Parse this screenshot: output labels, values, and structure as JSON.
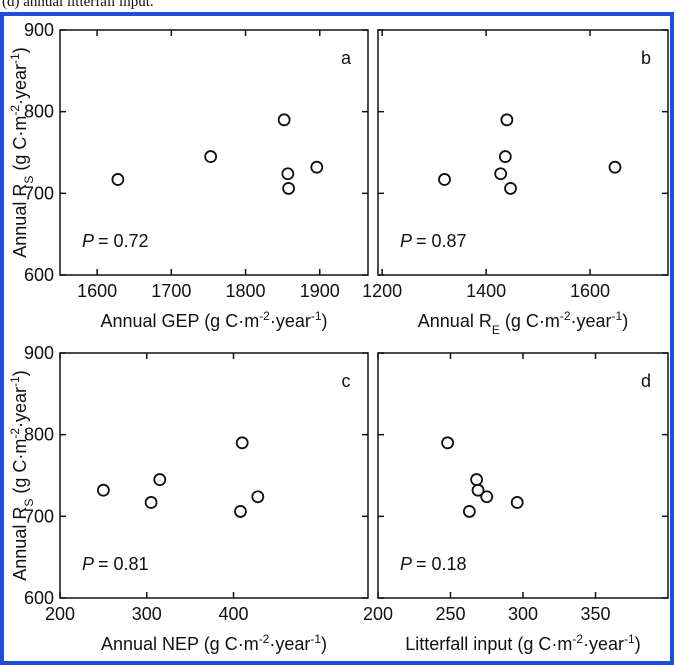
{
  "caption": "(d) annual litterfall input.",
  "chart_data": [
    {
      "type": "scatter",
      "annotation": "a",
      "p_label": "P",
      "p_value": "= 0.72",
      "xlabel": [
        {
          "text": "Annual GEP (g C·m"
        },
        {
          "text": "-2",
          "shift": "sup"
        },
        {
          "text": "·year"
        },
        {
          "text": "-1",
          "shift": "sup"
        },
        {
          "text": ")"
        }
      ],
      "ylabel": [
        {
          "text": "Annual R"
        },
        {
          "text": "S",
          "shift": "sub"
        },
        {
          "text": " (g C·m"
        },
        {
          "text": "-2",
          "shift": "sup"
        },
        {
          "text": "·year"
        },
        {
          "text": "-1",
          "shift": "sup"
        },
        {
          "text": ")"
        }
      ],
      "x": [
        1628,
        1753,
        1852,
        1857,
        1858,
        1896
      ],
      "values": [
        717,
        745,
        790,
        724,
        706,
        732
      ],
      "xlim": [
        1550,
        1965
      ],
      "xticks": [
        1600,
        1700,
        1800,
        1900
      ],
      "ylim": [
        600,
        900
      ],
      "yticks": [
        600,
        700,
        800,
        900
      ],
      "ytick_labels": true
    },
    {
      "type": "scatter",
      "annotation": "b",
      "p_label": "P",
      "p_value": "= 0.87",
      "xlabel": [
        {
          "text": "Annual R"
        },
        {
          "text": "E",
          "shift": "sub"
        },
        {
          "text": " (g C·m"
        },
        {
          "text": "-2",
          "shift": "sup"
        },
        {
          "text": "·year"
        },
        {
          "text": "-1",
          "shift": "sup"
        },
        {
          "text": ")"
        }
      ],
      "x": [
        1320,
        1440,
        1437,
        1428,
        1447,
        1648
      ],
      "values": [
        717,
        790,
        745,
        724,
        706,
        732
      ],
      "xlim": [
        1192,
        1750
      ],
      "xticks": [
        1200,
        1400,
        1600
      ],
      "ylim": [
        600,
        900
      ],
      "yticks": [
        600,
        700,
        800,
        900
      ],
      "ytick_labels": false
    },
    {
      "type": "scatter",
      "annotation": "c",
      "p_label": "P",
      "p_value": "= 0.81",
      "xlabel": [
        {
          "text": "Annual NEP (g C·m"
        },
        {
          "text": "-2",
          "shift": "sup"
        },
        {
          "text": "·year"
        },
        {
          "text": "-1",
          "shift": "sup"
        },
        {
          "text": ")"
        }
      ],
      "ylabel": [
        {
          "text": "Annual R"
        },
        {
          "text": "S",
          "shift": "sub"
        },
        {
          "text": " (g C·m"
        },
        {
          "text": "-2",
          "shift": "sup"
        },
        {
          "text": "·year"
        },
        {
          "text": "-1",
          "shift": "sup"
        },
        {
          "text": ")"
        }
      ],
      "x": [
        250,
        305,
        315,
        410,
        428,
        408
      ],
      "values": [
        732,
        717,
        745,
        790,
        724,
        706
      ],
      "xlim": [
        200,
        555
      ],
      "xticks": [
        200,
        300,
        400
      ],
      "ylim": [
        600,
        900
      ],
      "yticks": [
        600,
        700,
        800,
        900
      ],
      "ytick_labels": true
    },
    {
      "type": "scatter",
      "annotation": "d",
      "p_label": "P",
      "p_value": "= 0.18",
      "xlabel": [
        {
          "text": "Litterfall input (g C·m"
        },
        {
          "text": "-2",
          "shift": "sup"
        },
        {
          "text": "·year"
        },
        {
          "text": "-1",
          "shift": "sup"
        },
        {
          "text": ")"
        }
      ],
      "x": [
        248,
        268,
        269,
        275,
        263,
        296
      ],
      "values": [
        790,
        745,
        732,
        724,
        706,
        717
      ],
      "xlim": [
        200,
        400
      ],
      "xticks": [
        200,
        250,
        300,
        350
      ],
      "ylim": [
        600,
        900
      ],
      "yticks": [
        600,
        700,
        800,
        900
      ],
      "ytick_labels": false
    }
  ]
}
